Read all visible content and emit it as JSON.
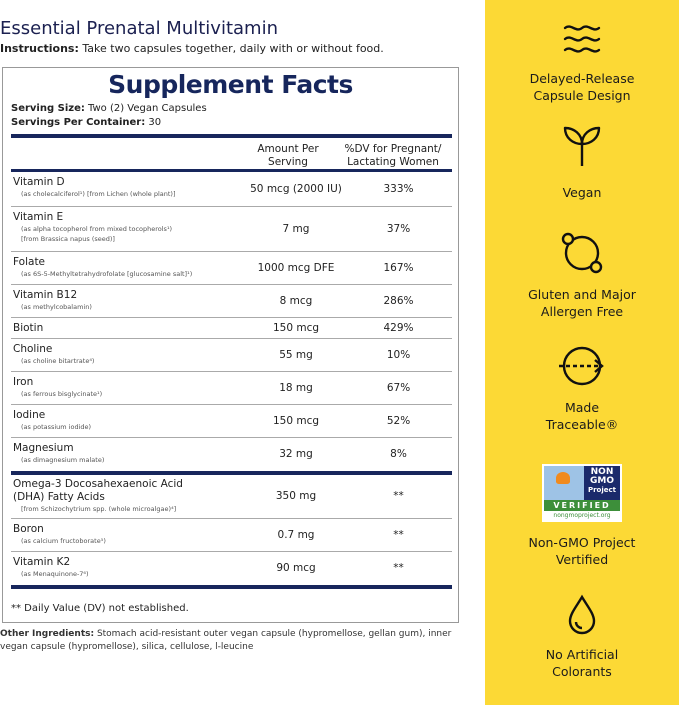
{
  "title": "Essential Prenatal Multivitamin",
  "instructions": {
    "label": "Instructions:",
    "text": " Take two capsules together, daily with or without food."
  },
  "facts": {
    "heading": "Supplement Facts",
    "serving_size_label": "Serving Size:",
    "serving_size": " Two (2) Vegan Capsules",
    "servings_label": "Servings Per Container:",
    "servings": " 30",
    "col_amount": "Amount Per Serving",
    "col_dv": "%DV for Pregnant/ Lactating Women",
    "rows": [
      {
        "name": "Vitamin D",
        "sub": "(as cholecalciferol¹) [from Lichen (whole plant)]",
        "amount": "50 mcg (2000 IU)",
        "dv": "333%"
      },
      {
        "name": "Vitamin E",
        "sub": "(as alpha tocopherol from mixed tocopherols¹)",
        "sub2": "[from Brassica napus (seed)]",
        "amount": "7 mg",
        "dv": "37%"
      },
      {
        "name": "Folate",
        "sub": "(as 6S-5-Methyltetrahydrofolate [glucosamine salt]¹)",
        "amount": "1000 mcg DFE",
        "dv": "167%"
      },
      {
        "name": "Vitamin B12",
        "sub": "(as methylcobalamin)",
        "amount": "8 mcg",
        "dv": "286%"
      },
      {
        "name": "Biotin",
        "sub": "",
        "amount": "150 mcg",
        "dv": "429%"
      },
      {
        "name": "Choline",
        "sub": "(as choline bitartrate⁴)",
        "amount": "55 mg",
        "dv": "10%"
      },
      {
        "name": "Iron",
        "sub": "(as ferrous bisglycinate¹)",
        "amount": "18 mg",
        "dv": "67%"
      },
      {
        "name": "Iodine",
        "sub": "(as potassium iodide)",
        "amount": "150 mcg",
        "dv": "52%"
      },
      {
        "name": "Magnesium",
        "sub": "(as dimagnesium malate)",
        "amount": "32 mg",
        "dv": "8%"
      },
      {
        "name": "Omega-3 Docosahexaenoic Acid (DHA) Fatty Acids",
        "sub": "[from Schizochytrium spp. (whole microalgae)⁴]",
        "amount": "350 mg",
        "dv": "**"
      },
      {
        "name": "Boron",
        "sub": "(as calcium fructoborate⁵)",
        "amount": "0.7 mg",
        "dv": "**"
      },
      {
        "name": "Vitamin K2",
        "sub": "(as Menaquinone-7⁶)",
        "amount": "90 mcg",
        "dv": "**"
      }
    ],
    "footnote": "** Daily Value (DV) not established."
  },
  "other_ingredients": {
    "label": "Other Ingredients:",
    "text": " Stomach acid-resistant outer vegan capsule (hypromellose, gellan gum), inner vegan capsule (hypromellose),  silica, cellulose, l-leucine"
  },
  "features": [
    {
      "icon": "waves-icon",
      "label": "Delayed-Release Capsule Design"
    },
    {
      "icon": "sprout-icon",
      "label": "Vegan"
    },
    {
      "icon": "allergen-free-icon",
      "label": "Gluten and Major Allergen Free"
    },
    {
      "icon": "traceable-arrow-icon",
      "label": "Made Traceable®"
    },
    {
      "icon": "non-gmo-logo",
      "label": "Non-GMO Project Vertified",
      "logo_text": [
        "NON",
        "GMO",
        "Project",
        "VERIFIED",
        "nongmoproject.org"
      ]
    },
    {
      "icon": "drop-icon",
      "label": "No Artificial Colorants"
    }
  ],
  "colors": {
    "navy": "#17265c",
    "yellow": "#fcd935"
  }
}
